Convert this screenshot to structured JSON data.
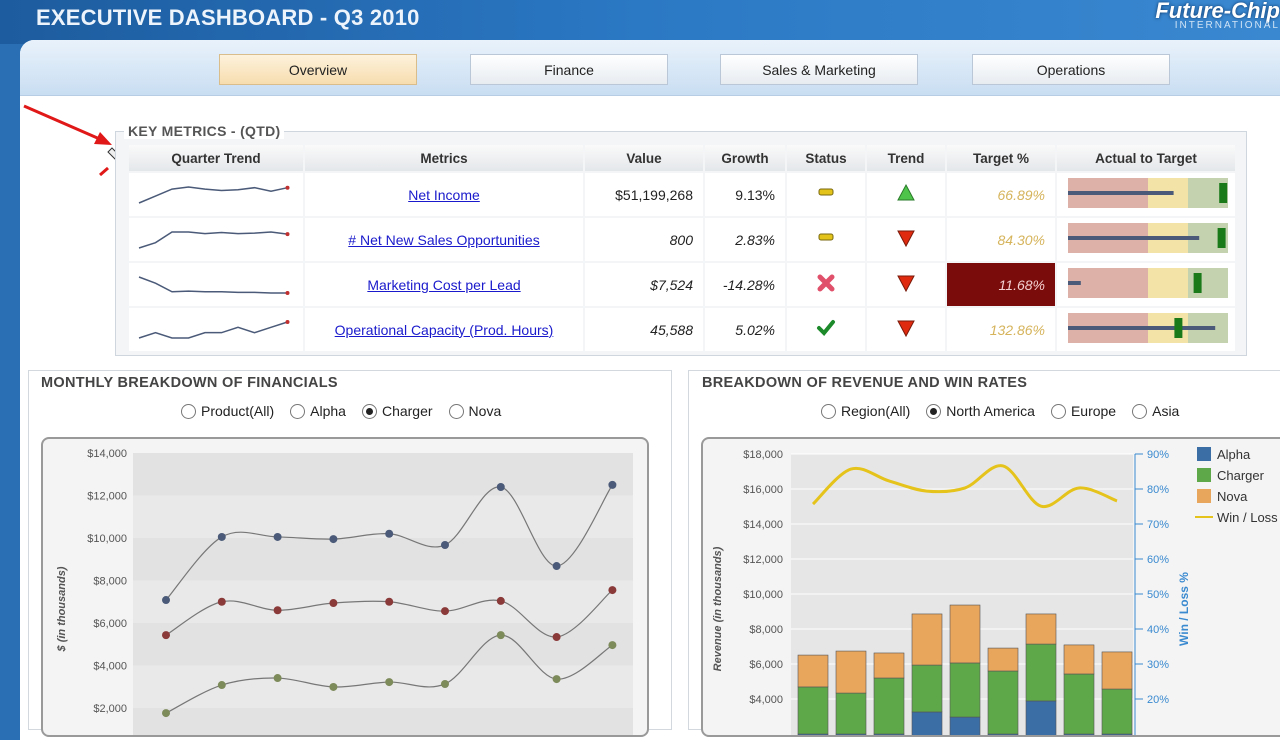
{
  "header": {
    "title": "EXECUTIVE DASHBOARD - Q3 2010",
    "logo": "Future-Chip",
    "logo_sub": "INTERNATIONAL"
  },
  "tabs": [
    {
      "label": "Overview",
      "active": true
    },
    {
      "label": "Finance"
    },
    {
      "label": "Sales & Marketing"
    },
    {
      "label": "Operations"
    }
  ],
  "key_metrics": {
    "title": "KEY METRICS - (QTD)",
    "columns": [
      "Quarter Trend",
      "Metrics",
      "Value",
      "Growth",
      "Status",
      "Trend",
      "Target %",
      "Actual to Target"
    ],
    "rows": [
      {
        "metric": "Net Income",
        "value": "$51,199,268",
        "growth": "9.13%",
        "status": "warning",
        "trend": "up",
        "target": "66.89%",
        "actual": 0.66,
        "target_marker": 0.97,
        "spark": [
          2,
          3,
          4,
          4.3,
          4,
          3.8,
          3.9,
          4.2,
          3.7,
          4.2
        ]
      },
      {
        "metric": "# Net New Sales Opportunities",
        "value": "800",
        "growth": "2.83%",
        "status": "warning",
        "trend": "down",
        "target": "84.30%",
        "actual": 0.82,
        "target_marker": 0.96,
        "spark": [
          2,
          3,
          5,
          5,
          4.7,
          4.9,
          4.7,
          4.8,
          5,
          4.6
        ]
      },
      {
        "metric": "Marketing Cost per Lead",
        "value": "$7,524",
        "growth": "-14.28%",
        "status": "bad",
        "trend": "down",
        "target": "11.68%",
        "actual": 0.08,
        "target_marker": 0.81,
        "spark": [
          5,
          4,
          2.6,
          2.7,
          2.6,
          2.6,
          2.5,
          2.5,
          2.4,
          2.4
        ]
      },
      {
        "metric": "Operational Capacity (Prod. Hours)",
        "value": "45,588",
        "growth": "5.02%",
        "status": "good",
        "trend": "down",
        "target": "132.86%",
        "actual": 0.92,
        "target_marker": 0.69,
        "spark": [
          3,
          3.1,
          3,
          3,
          3.1,
          3.1,
          3.2,
          3.1,
          3.2,
          3.3
        ]
      }
    ]
  },
  "financials": {
    "title": "MONTHLY BREAKDOWN OF FINANCIALS",
    "radios": [
      "Product(All)",
      "Alpha",
      "Charger",
      "Nova"
    ],
    "selected": 2
  },
  "revenue": {
    "title": "BREAKDOWN OF REVENUE AND WIN RATES",
    "radios": [
      "Region(All)",
      "North America",
      "Europe",
      "Asia"
    ],
    "selected": 1
  },
  "colors": {
    "alpha": "#3a6ea5",
    "charger": "#5fa84a",
    "nova": "#e8a55c",
    "winloss": "#e5c31a"
  },
  "chart_data": [
    {
      "type": "line",
      "title": "MONTHLY BREAKDOWN OF FINANCIALS",
      "ylabel": "$ (in thousands)",
      "ylim": [
        2000,
        14000
      ],
      "yticks": [
        "$14,000",
        "$12,000",
        "$10,000",
        "$8,000",
        "$6,000",
        "$4,000",
        "$2,000"
      ],
      "series": [
        {
          "name": "series-1",
          "color": "#4a5a78",
          "values": [
            7080,
            10050,
            10050,
            9950,
            10200,
            9670,
            12400,
            8680,
            12500
          ]
        },
        {
          "name": "series-2",
          "color": "#8b3a3a",
          "values": [
            5430,
            7000,
            6600,
            6940,
            7000,
            6560,
            7040,
            5340,
            7550
          ]
        },
        {
          "name": "series-3",
          "color": "#7d8a5a",
          "values": [
            1760,
            3080,
            3410,
            2990,
            3220,
            3130,
            5430,
            3360,
            4960
          ]
        }
      ]
    },
    {
      "type": "bar",
      "stacked": true,
      "title": "BREAKDOWN OF REVENUE AND WIN RATES",
      "ylabel": "Revenue (in thousands)",
      "y2label": "Win / Loss %",
      "ylim": [
        2000,
        18000
      ],
      "y2lim": [
        10,
        90
      ],
      "yticks": [
        "$18,000",
        "$16,000",
        "$14,000",
        "$12,000",
        "$10,000",
        "$8,000",
        "$6,000",
        "$4,000"
      ],
      "y2ticks": [
        "90%",
        "80%",
        "70%",
        "60%",
        "50%",
        "40%",
        "30%",
        "20%"
      ],
      "legend": [
        "Alpha",
        "Charger",
        "Nova",
        "Win / Loss"
      ],
      "series": [
        {
          "name": "Alpha",
          "values": [
            2000,
            2000,
            2000,
            3260,
            2970,
            2000,
            3890,
            2000,
            2000
          ]
        },
        {
          "name": "Charger",
          "values": [
            2690,
            2340,
            3200,
            2680,
            3090,
            3600,
            3250,
            3430,
            2570
          ]
        },
        {
          "name": "Nova",
          "values": [
            1820,
            2400,
            1430,
            2920,
            3310,
            1310,
            1720,
            1660,
            2120
          ]
        },
        {
          "name": "Win / Loss",
          "axis": "right",
          "values": [
            75.7,
            85.7,
            82.3,
            79.4,
            80.3,
            86.6,
            75.1,
            80.3,
            76.6
          ]
        }
      ]
    }
  ]
}
